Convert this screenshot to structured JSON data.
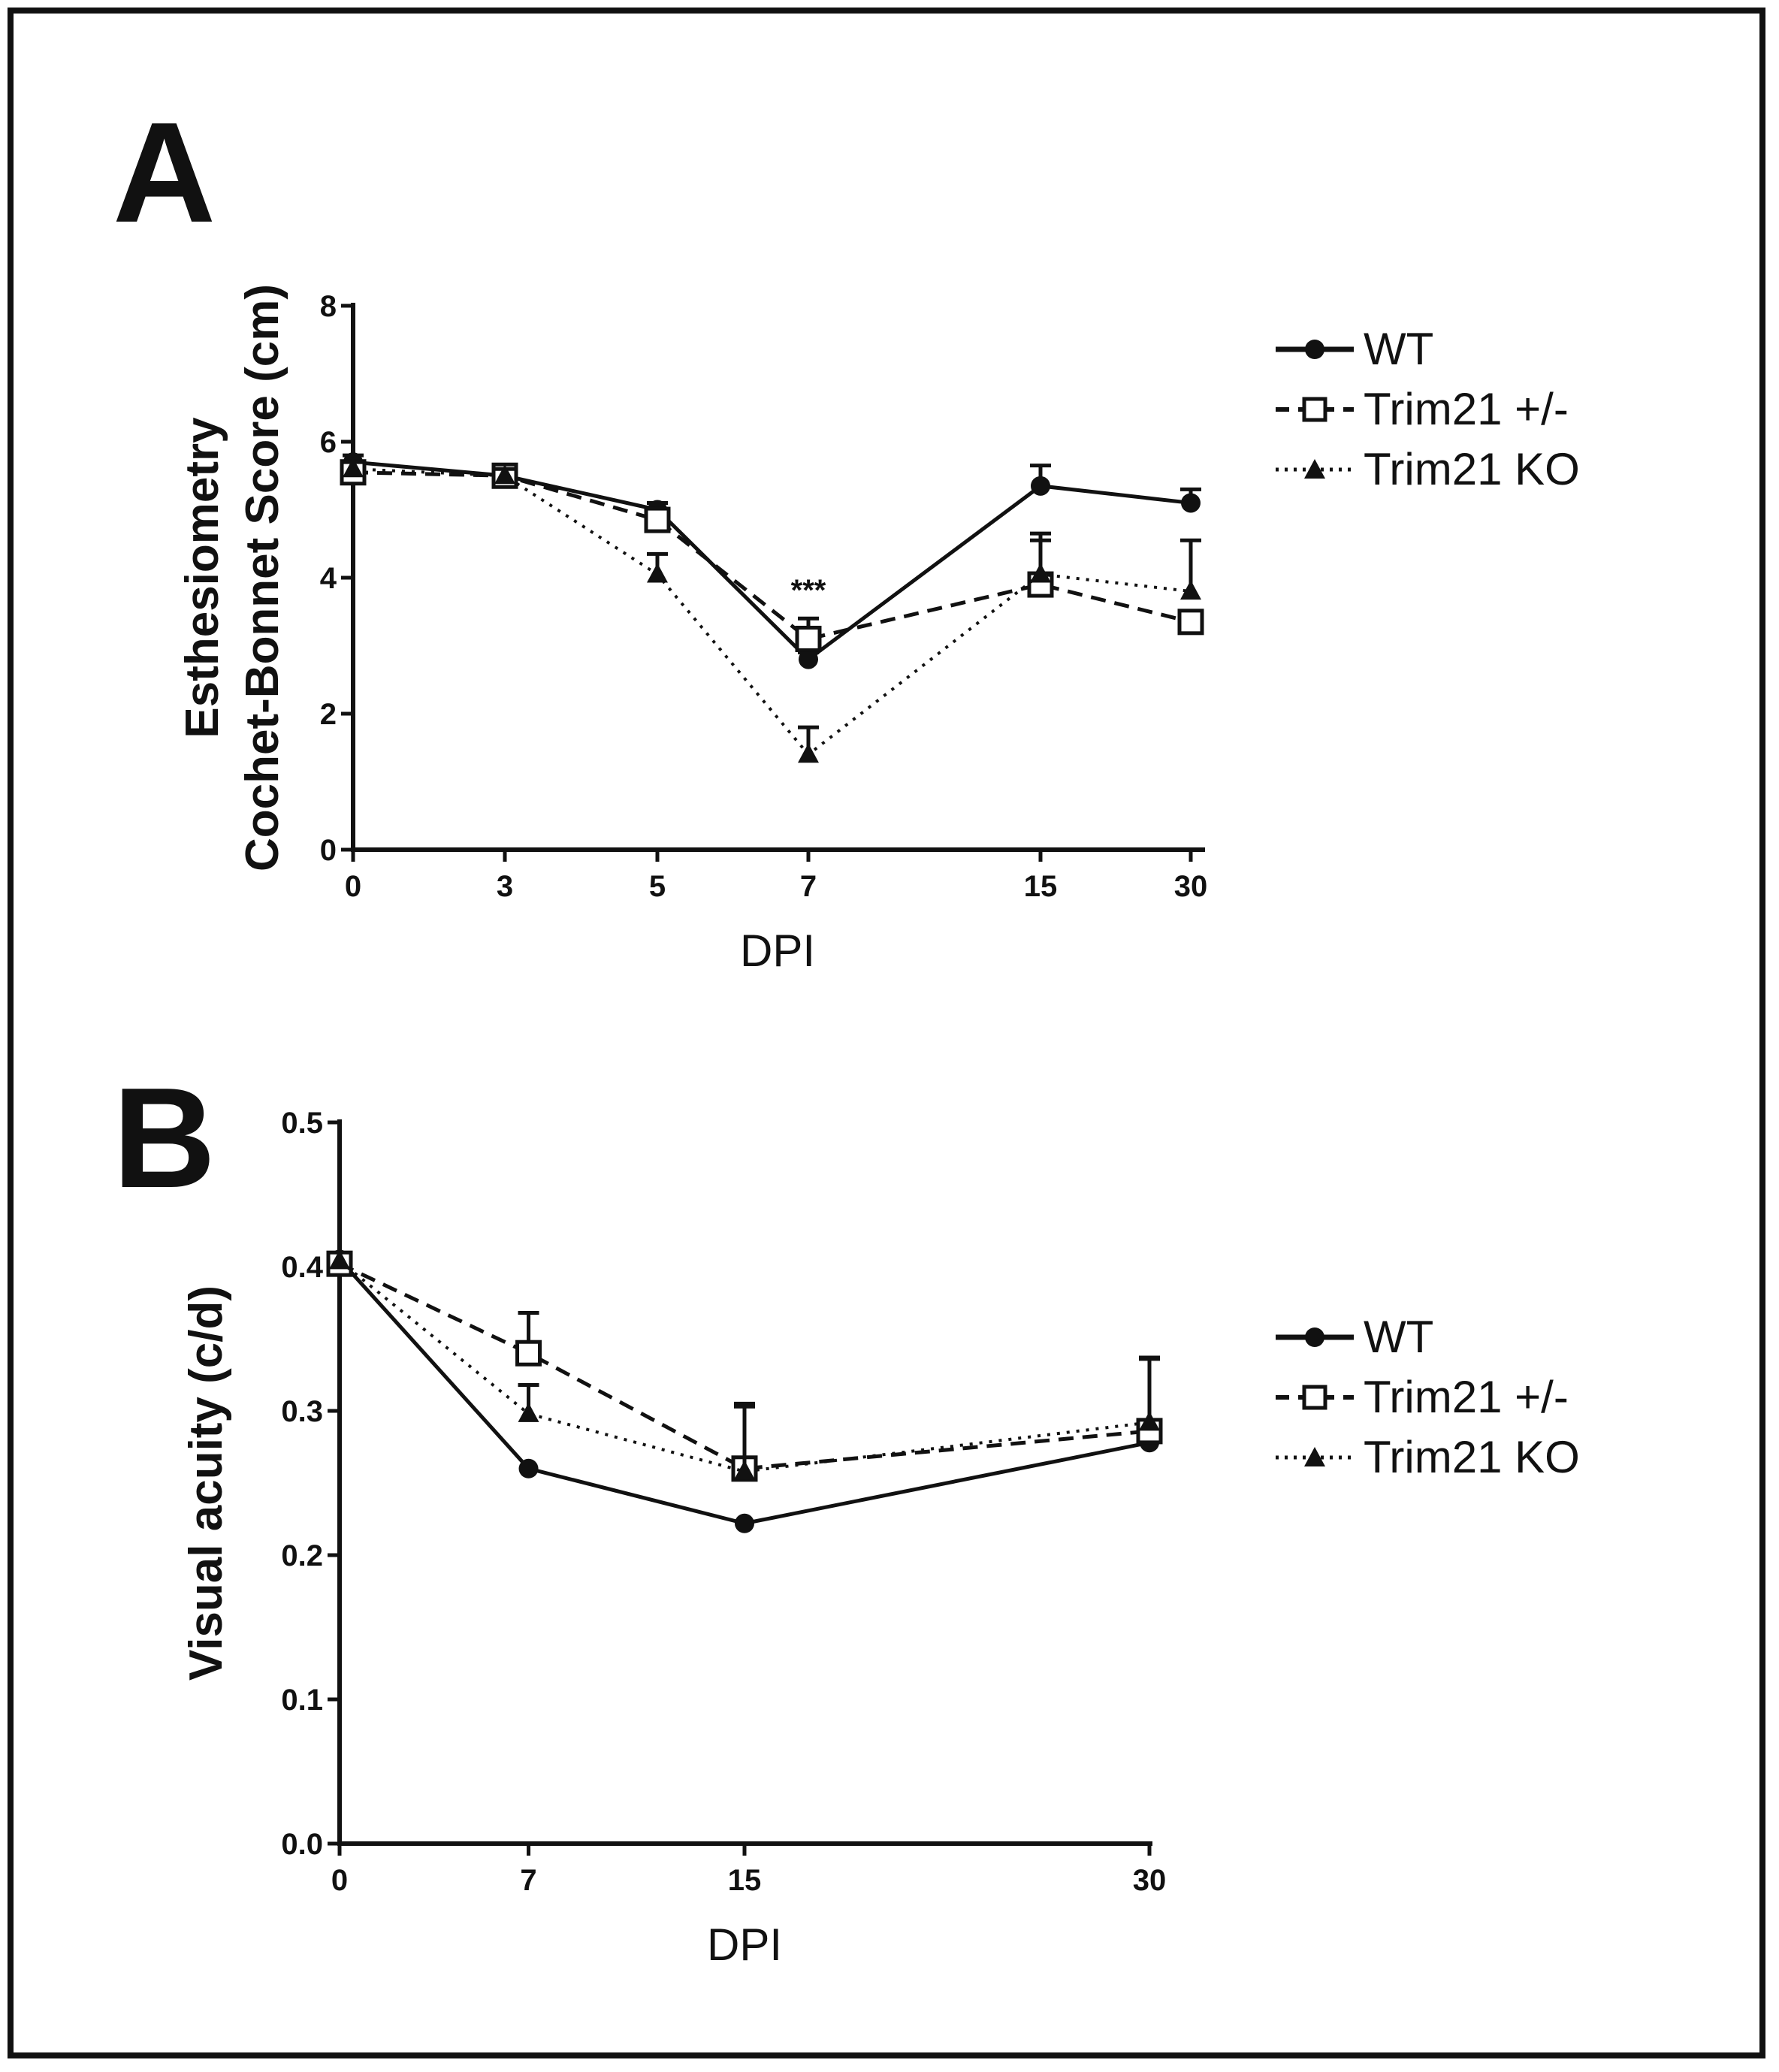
{
  "figure": {
    "panel_a_letter": "A",
    "panel_b_letter": "B",
    "colors": {
      "ink": "#111111",
      "background": "#ffffff"
    }
  },
  "chart_data": [
    {
      "id": "A",
      "type": "line",
      "title": "",
      "xlabel": "DPI",
      "ylabel_lines": [
        "Esthesiometry",
        "Cochet-Bonnet Score (cm)"
      ],
      "categories": [
        "0",
        "3",
        "5",
        "7",
        "15",
        "30"
      ],
      "ylim": [
        0,
        8
      ],
      "yticks": [
        "0",
        "2",
        "4",
        "6",
        "8"
      ],
      "ytick_values": [
        0,
        2,
        4,
        6,
        8
      ],
      "grid": false,
      "legend_position": "right",
      "annotations": [
        {
          "text": "***",
          "category": "7",
          "y": 3.8
        }
      ],
      "series": [
        {
          "name": "WT",
          "marker": "circle-filled",
          "line": "solid",
          "values": [
            5.7,
            5.5,
            5.0,
            2.8,
            5.35,
            5.1
          ],
          "errors": [
            0.1,
            0.1,
            0.1,
            0.1,
            0.3,
            0.2
          ]
        },
        {
          "name": "Trim21 +/-",
          "marker": "square-open",
          "line": "dashed",
          "values": [
            5.55,
            5.5,
            4.85,
            3.1,
            3.9,
            3.35
          ],
          "errors": [
            0.1,
            0.1,
            0.1,
            0.3,
            0.75,
            0.1
          ]
        },
        {
          "name": "Trim21 KO",
          "marker": "triangle-filled",
          "line": "dotted",
          "values": [
            5.6,
            5.5,
            4.05,
            1.4,
            4.05,
            3.8
          ],
          "errors": [
            0.1,
            0.1,
            0.3,
            0.4,
            0.5,
            0.75
          ]
        }
      ]
    },
    {
      "id": "B",
      "type": "line",
      "title": "",
      "xlabel": "DPI",
      "ylabel_lines": [
        "Visual acuity (c/d)"
      ],
      "categories": [
        "0",
        "7",
        "15",
        "30"
      ],
      "x_values": [
        0,
        7,
        15,
        30
      ],
      "ylim": [
        0,
        0.5
      ],
      "yticks": [
        "0.0",
        "0.1",
        "0.2",
        "0.3",
        "0.4",
        "0.5"
      ],
      "ytick_values": [
        0,
        0.1,
        0.2,
        0.3,
        0.4,
        0.5
      ],
      "grid": false,
      "legend_position": "right",
      "series": [
        {
          "name": "WT",
          "marker": "circle-filled",
          "line": "solid",
          "values": [
            0.405,
            0.26,
            0.222,
            0.278
          ],
          "errors": [
            0,
            0,
            0,
            0
          ]
        },
        {
          "name": "Trim21 +/-",
          "marker": "square-open",
          "line": "dashed",
          "values": [
            0.402,
            0.34,
            0.26,
            0.286
          ],
          "errors": [
            0,
            0.028,
            0.045,
            0.05
          ]
        },
        {
          "name": "Trim21 KO",
          "marker": "triangle-filled",
          "line": "dotted",
          "values": [
            0.404,
            0.298,
            0.258,
            0.292
          ],
          "errors": [
            0,
            0.02,
            0.045,
            0.045
          ]
        }
      ]
    }
  ]
}
